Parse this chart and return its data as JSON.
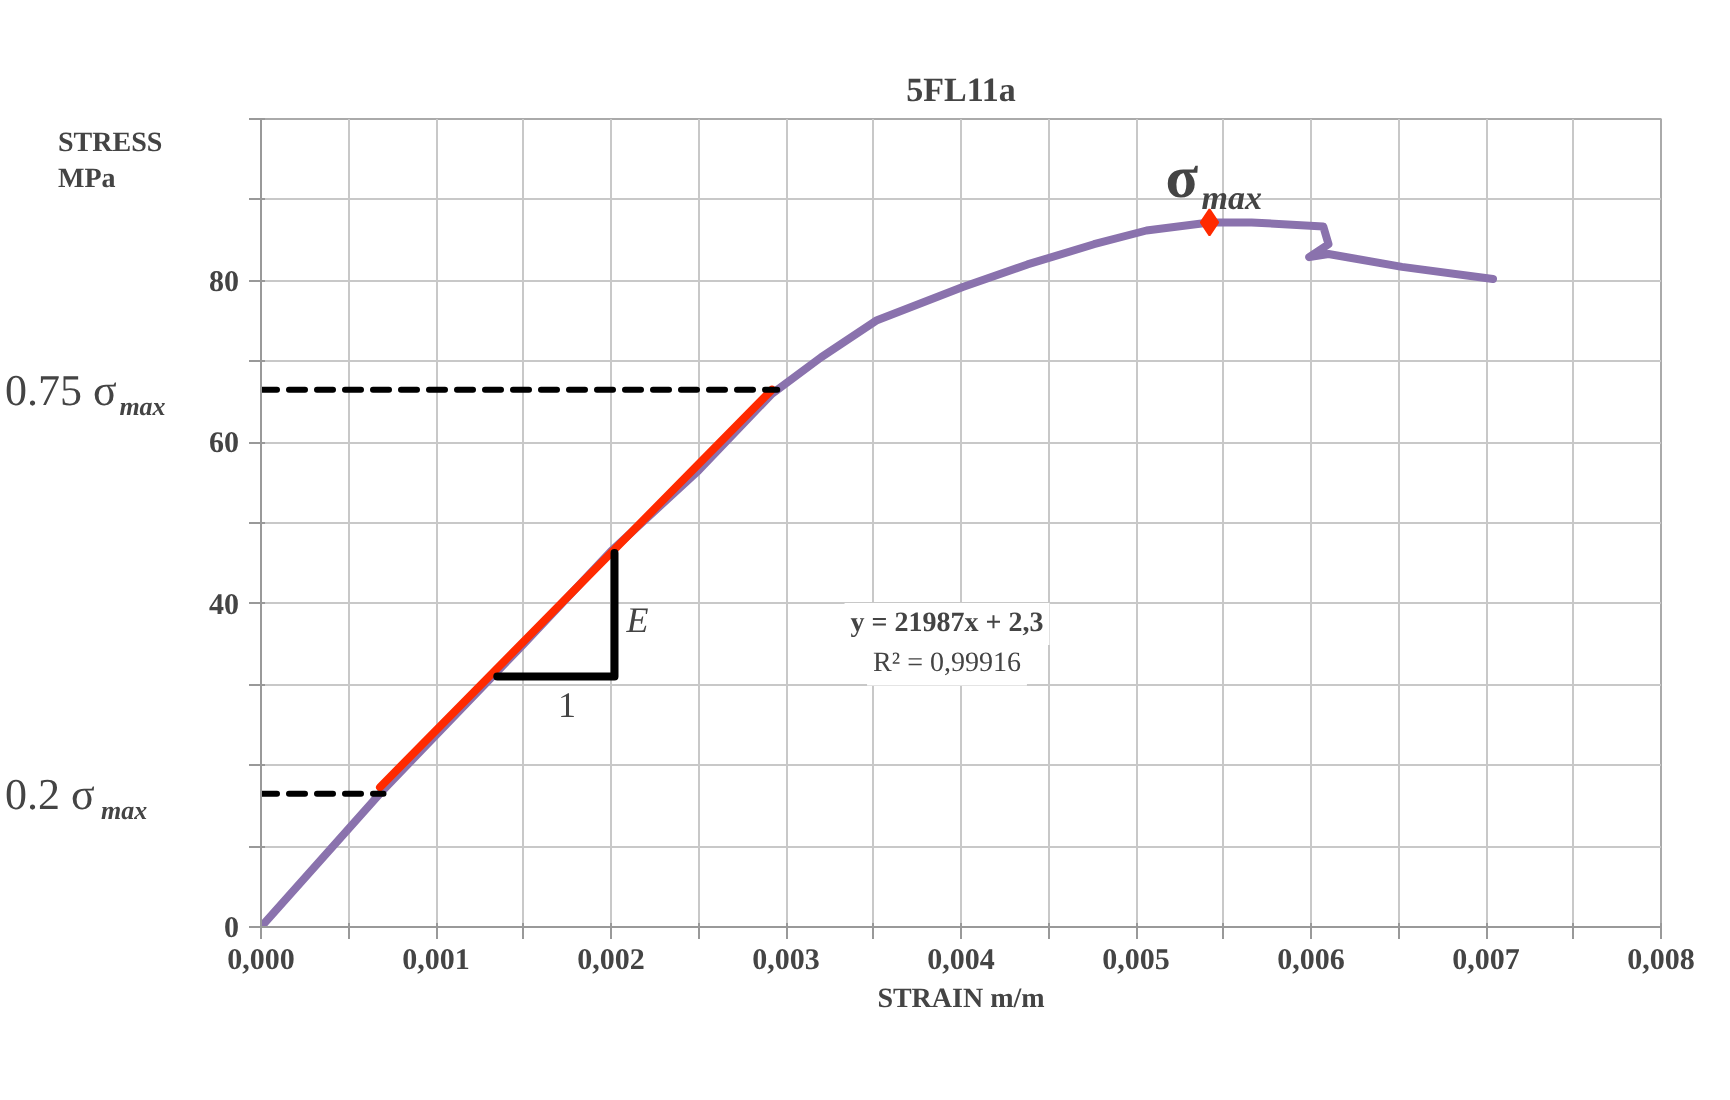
{
  "chart_data": {
    "type": "line",
    "title": "5FL11a",
    "xlabel": "STRAIN m/m",
    "ylabel": "STRESS\nMPa",
    "xlim": [
      0,
      0.008
    ],
    "ylim": [
      0,
      100
    ],
    "xticks": [
      {
        "value": 0,
        "label": "0,000"
      },
      {
        "value": 0.0005,
        "label": null
      },
      {
        "value": 0.001,
        "label": "0,001"
      },
      {
        "value": 0.0015,
        "label": null
      },
      {
        "value": 0.002,
        "label": "0,002"
      },
      {
        "value": 0.0025,
        "label": null
      },
      {
        "value": 0.003,
        "label": "0,003"
      },
      {
        "value": 0.0035,
        "label": null
      },
      {
        "value": 0.004,
        "label": "0,004"
      },
      {
        "value": 0.0045,
        "label": null
      },
      {
        "value": 0.005,
        "label": "0,005"
      },
      {
        "value": 0.0055,
        "label": null
      },
      {
        "value": 0.006,
        "label": "0,006"
      },
      {
        "value": 0.0065,
        "label": null
      },
      {
        "value": 0.007,
        "label": "0,007"
      },
      {
        "value": 0.0075,
        "label": null
      },
      {
        "value": 0.008,
        "label": "0,008"
      }
    ],
    "yticks": [
      0,
      {
        "value": 10,
        "label": null
      },
      {
        "value": 20,
        "label": null
      },
      {
        "value": 30,
        "label": null
      },
      40,
      {
        "value": 50,
        "label": null
      },
      60,
      {
        "value": 70,
        "label": null
      },
      80,
      {
        "value": 90,
        "label": null
      },
      {
        "value": 100,
        "label": null
      }
    ],
    "grid": true,
    "marker": "none",
    "line_style": "solid",
    "series": [
      {
        "color": "#8a72ad",
        "x": [
          0,
          0.0007,
          0.0015,
          0.002,
          0.0025,
          0.00292,
          0.0032,
          0.00352,
          0.00401,
          0.00438,
          0.00476,
          0.00506,
          0.00542,
          0.00566,
          0.00607,
          0.0061,
          0.00599,
          0.0061,
          0.00652,
          0.00704
        ],
        "values": [
          0,
          17,
          35,
          46.5,
          56.5,
          66,
          70.5,
          75.1,
          79.2,
          82,
          84.5,
          86.2,
          87.2,
          87.2,
          86.7,
          84.5,
          82.9,
          83.3,
          81.7,
          80.2
        ]
      },
      {
        "color": "#ff2a00",
        "x": [
          0.00068,
          0.00292
        ],
        "values": [
          17.3,
          66.5
        ]
      },
      {
        "color": "#000000",
        "x": [
          0.00135,
          0.00202,
          0.00202
        ],
        "values": [
          31,
          31,
          46.3
        ]
      },
      {
        "color": "#000000",
        "line_style": "dashed",
        "x": [
          0,
          0.0007
        ],
        "values": [
          16.5,
          16.5
        ]
      },
      {
        "color": "#000000",
        "line_style": "dashed",
        "x": [
          0,
          0.00295
        ],
        "values": [
          66.5,
          66.5
        ]
      },
      {
        "type": "scatter",
        "marker": "diamond",
        "color": "#ff2a00",
        "x": [
          0.00542
        ],
        "values": [
          87.2
        ]
      }
    ],
    "annotations": [
      {
        "text": "σ$_{max}$",
        "x": 0.00542,
        "y": 87.2
      },
      {
        "text": "0.75 σ$_{max}$",
        "x": 0,
        "y": 66.5
      },
      {
        "text": "0.2 σ$_{max}$",
        "x": 0,
        "y": 16.5
      },
      {
        "text": "E",
        "x": 0.00202,
        "y": 38
      },
      {
        "text": "1",
        "x": 0.00168,
        "y": 31
      },
      "y = 21987x + 2,3",
      "R² = 0,99916"
    ]
  }
}
